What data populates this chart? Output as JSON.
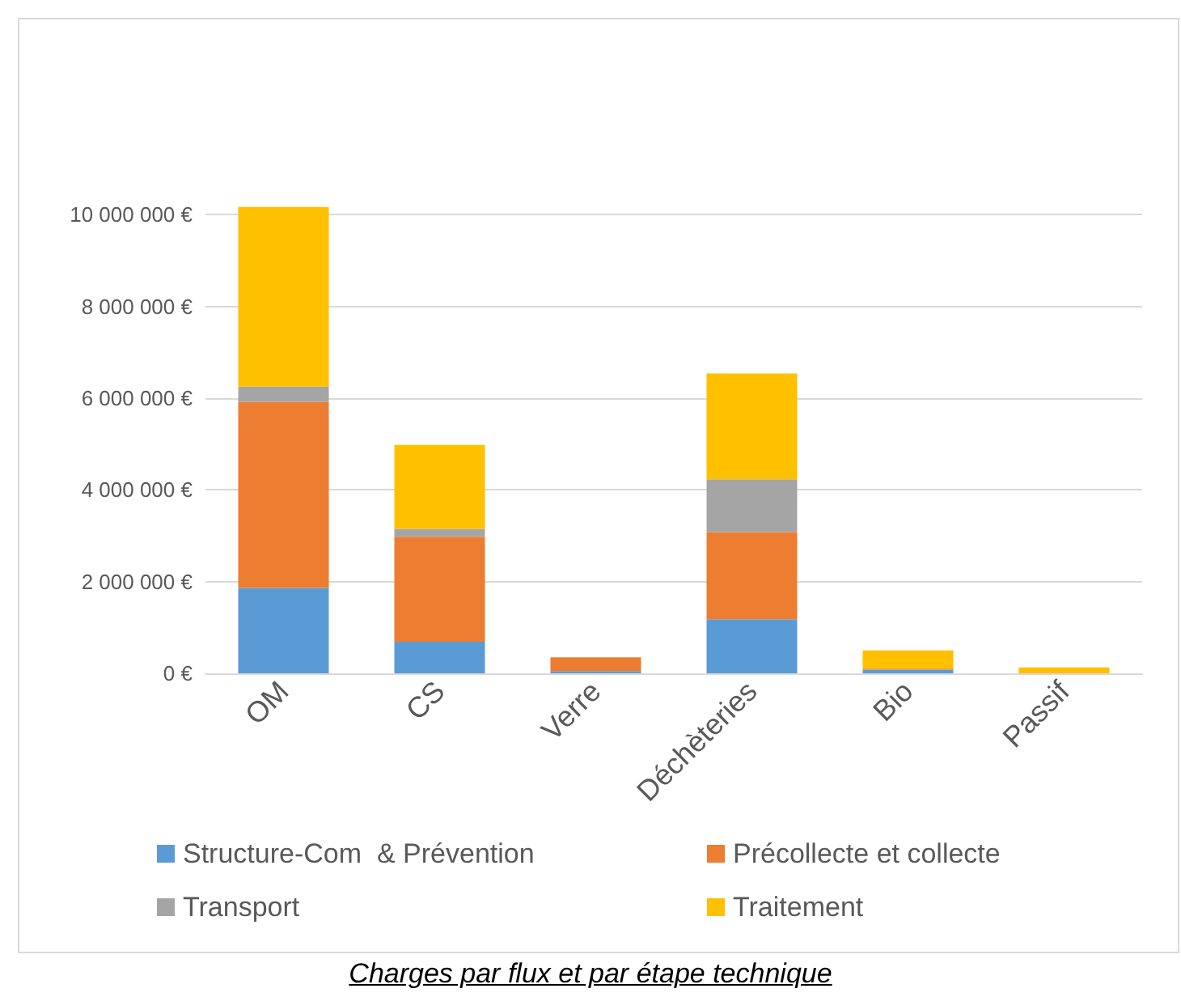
{
  "chart_data": {
    "type": "bar",
    "stacked": true,
    "title": "Charges par flux et par étape technique",
    "categories": [
      "OM",
      "CS",
      "Verre",
      "Déchèteries",
      "Bio",
      "Passif"
    ],
    "series": [
      {
        "name": "Structure-Com  & Prévention",
        "color": "#5b9bd5",
        "values": [
          1860000,
          690000,
          50000,
          1180000,
          80000,
          0
        ]
      },
      {
        "name": "Précollecte et collecte",
        "color": "#ed7d31",
        "values": [
          4060000,
          2290000,
          300000,
          1900000,
          20000,
          0
        ]
      },
      {
        "name": "Transport",
        "color": "#a5a5a5",
        "values": [
          330000,
          170000,
          null,
          1150000,
          0,
          0
        ]
      },
      {
        "name": "Traitement",
        "color": "#ffc000",
        "values": [
          3920000,
          1830000,
          0,
          2310000,
          400000,
          130000
        ]
      }
    ],
    "ylim": [
      0,
      10200000
    ],
    "yticks": [
      {
        "value": 0,
        "label": "0 €"
      },
      {
        "value": 2000000,
        "label": "2 000 000 €"
      },
      {
        "value": 4000000,
        "label": "4 000 000 €"
      },
      {
        "value": 6000000,
        "label": "6 000 000 €"
      },
      {
        "value": 8000000,
        "label": "8 000 000 €"
      },
      {
        "value": 10000000,
        "label": "10 000 000 €"
      }
    ],
    "grid": "y",
    "legend": "bottom"
  }
}
